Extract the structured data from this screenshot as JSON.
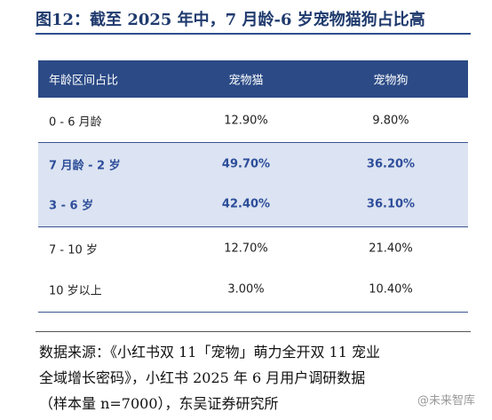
{
  "header": {
    "title": "图12：截至 2025 年中，7 月龄-6 岁宠物猫狗占比高"
  },
  "table": {
    "columns": [
      "年龄区间占比",
      "宠物猫",
      "宠物狗"
    ],
    "rows": [
      [
        "0 - 6 月龄",
        "12.90%",
        "9.80%"
      ],
      [
        "7 月龄 - 2 岁",
        "49.70%",
        "36.20%"
      ],
      [
        "3 - 6 岁",
        "42.40%",
        "36.10%"
      ],
      [
        "7 - 10 岁",
        "12.70%",
        "21.40%"
      ],
      [
        "10 岁以上",
        "3.00%",
        "10.40%"
      ]
    ]
  },
  "source": {
    "lines": [
      "数据来源：《小红书双 11「宠物」萌力全开双 11 宠业",
      "全域增长密码》，小红书 2025 年 6 月用户调研数据",
      "（样本量 n=7000），东吴证券研究所"
    ]
  },
  "watermark": "@未来智库"
}
